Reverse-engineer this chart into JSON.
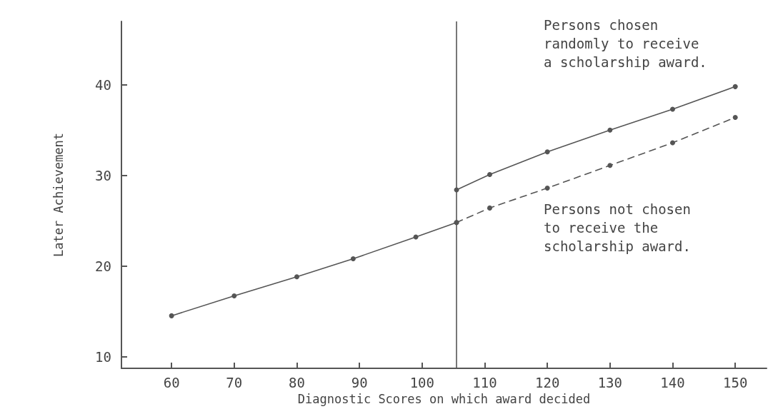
{
  "chart_data": {
    "type": "line",
    "xlabel": "Diagnostic Scores on which award decided",
    "ylabel": "Later Achievement",
    "xlim": [
      52,
      155
    ],
    "ylim": [
      8.7,
      47
    ],
    "xticks": [
      60,
      70,
      80,
      90,
      100,
      110,
      120,
      130,
      140,
      150
    ],
    "yticks": [
      10,
      20,
      30,
      40
    ],
    "grid": false,
    "marker": "circle",
    "series": [
      {
        "color": "#555555",
        "line_style": "solid",
        "x": [
          105.5,
          110.8,
          120,
          130,
          140,
          150
        ],
        "values": [
          28.4,
          30.1,
          32.6,
          35.0,
          37.3,
          39.8
        ]
      },
      {
        "color": "#555555",
        "line_style": "solid",
        "x": [
          60,
          70,
          80,
          89,
          99,
          105.5
        ],
        "values": [
          14.5,
          16.7,
          18.8,
          20.8,
          23.2,
          24.8
        ]
      },
      {
        "color": "#555555",
        "line_style": "dashed",
        "x": [
          105.5,
          110.8,
          120,
          130,
          140,
          150
        ],
        "values": [
          24.8,
          26.4,
          28.6,
          31.1,
          33.6,
          36.4
        ]
      }
    ],
    "ref_lines": [
      {
        "axis": "x",
        "value": 105.5,
        "color": "#555555",
        "line_style": "solid"
      }
    ],
    "annotations": [
      "Persons chosen\nrandomly to receive\na scholarship award.",
      "Persons not chosen\nto receive the\nscholarship award."
    ]
  }
}
